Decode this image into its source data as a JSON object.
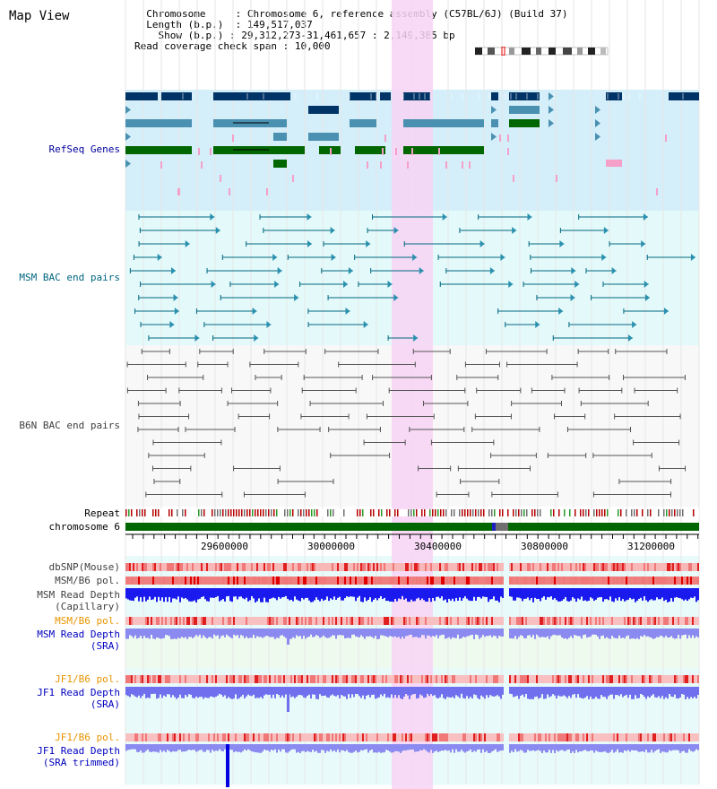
{
  "page": {
    "title": "Map View"
  },
  "info": {
    "chromosome_label": "Chromosome",
    "chromosome_value": "Chromosome 6, reference assembly (C57BL/6J) (Build 37)",
    "length_label": "Length (b.p.)",
    "length_value": "149,517,037",
    "show_label": "Show (b.p.)",
    "show_value": "29,312,273-31,461,657 : 2,149,385 bp",
    "span_label": "Read coverage check span",
    "span_value": "10,000"
  },
  "tracks": {
    "refseq": {
      "label": "RefSeq Genes",
      "color": "#00009c"
    },
    "msm_bac": {
      "label": "MSM BAC end pairs",
      "color": "#006680"
    },
    "b6n_bac": {
      "label": "B6N BAC end pairs",
      "color": "#404040"
    },
    "repeat": {
      "label": "Repeat"
    },
    "chromosome": {
      "label": "chromosome 6"
    },
    "dbsnp": {
      "label": "dbSNP(Mouse)"
    },
    "msm_b6_pol_1": {
      "label": "MSM/B6 pol."
    },
    "msm_depth_cap_1": {
      "label": "MSM Read Depth"
    },
    "msm_depth_cap_2": {
      "label": "(Capillary)"
    },
    "msm_b6_pol_2": {
      "label": "MSM/B6 pol.",
      "color": "#e89400"
    },
    "msm_depth_sra_1": {
      "label": "MSM Read Depth"
    },
    "msm_depth_sra_2": {
      "label": "(SRA)"
    },
    "jf1_b6_pol_1": {
      "label": "JF1/B6 pol.",
      "color": "#e89400"
    },
    "jf1_depth_sra_1": {
      "label": "JF1 Read Depth"
    },
    "jf1_depth_sra_2": {
      "label": "(SRA)"
    },
    "jf1_b6_pol_2": {
      "label": "JF1/B6 pol.",
      "color": "#e89400"
    },
    "jf1_depth_trim_1": {
      "label": "JF1 Read Depth"
    },
    "jf1_depth_trim_2": {
      "label": "(SRA trimmed)"
    }
  },
  "axis": {
    "ticks": [
      "29600000",
      "30000000",
      "30400000",
      "30800000",
      "31200000"
    ]
  },
  "colors": {
    "highlight": "#f8d4f4",
    "refseq_bg": "#d4eefa",
    "bac_bg": "#e4fafa",
    "gene_dark": "#003366",
    "gene_mid": "#4a90b0",
    "gene_green": "#006600",
    "chromosome_bar": "#006600"
  }
}
